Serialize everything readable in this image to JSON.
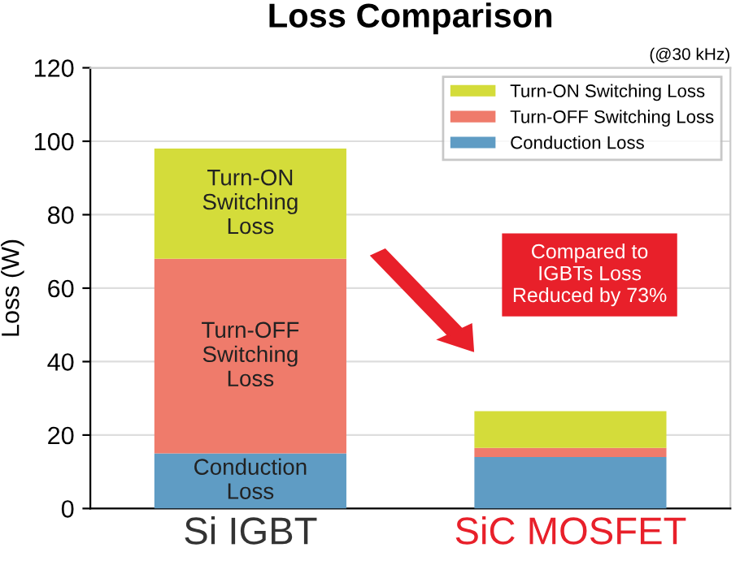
{
  "chart_data": {
    "type": "bar",
    "stacked": true,
    "title": "Loss Comparison",
    "ylabel": "Loss (W)",
    "categories": [
      "Si IGBT",
      "SiC MOSFET"
    ],
    "series": [
      {
        "name": "Conduction Loss",
        "color": "#5f9cc4",
        "values": [
          15,
          14
        ]
      },
      {
        "name": "Turn-OFF Switching Loss",
        "color": "#ef7b6b",
        "values": [
          53,
          2.5
        ]
      },
      {
        "name": "Turn-ON Switching Loss",
        "color": "#d4dc3a",
        "values": [
          30,
          10
        ]
      }
    ],
    "ylim": [
      0,
      120
    ],
    "yticks": [
      0,
      20,
      40,
      60,
      80,
      100,
      120
    ],
    "grid": "y",
    "legend": "top right",
    "annotations": [
      "(@30 kHz)",
      "Compared to\nIGBTs Loss\nReduced by 73%",
      "Conduction\nLoss",
      "Turn-OFF\nSwitching\nLoss",
      "Turn-ON\nSwitching\nLoss"
    ]
  }
}
